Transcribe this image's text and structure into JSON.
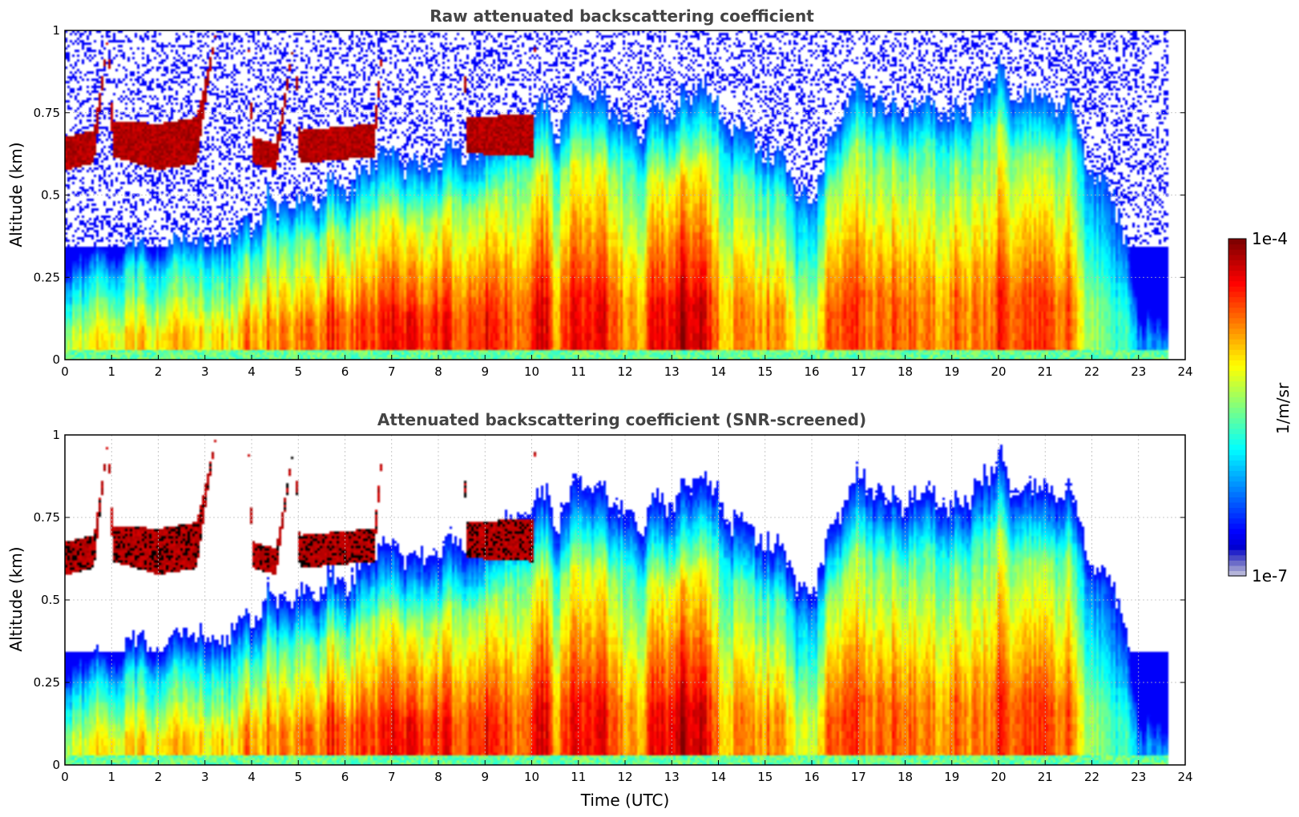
{
  "chart_data": [
    {
      "type": "heatmap",
      "title": "Raw attenuated backscattering coefficient",
      "xlabel": "",
      "ylabel": "Altitude (km)",
      "xlim": [
        0,
        24
      ],
      "ylim": [
        0,
        1
      ],
      "x_ticks": [
        "0",
        "1",
        "2",
        "3",
        "4",
        "5",
        "6",
        "7",
        "8",
        "9",
        "10",
        "11",
        "12",
        "13",
        "14",
        "15",
        "16",
        "17",
        "18",
        "19",
        "20",
        "21",
        "22",
        "23",
        "24"
      ],
      "y_ticks": [
        "0",
        "0.25",
        "0.5",
        "0.75",
        "1"
      ],
      "data_end_time": 23.6,
      "screened": false,
      "description_keyframes": [
        {
          "t": 0.0,
          "cloud_base": 0.58,
          "cloud_top": 0.68
        },
        {
          "t": 1.0,
          "cloud_base": 0.62,
          "cloud_top": 0.73
        },
        {
          "t": 2.5,
          "cloud_base": 0.6,
          "cloud_top": 0.72
        },
        {
          "t": 4.0,
          "cloud_base": 0.6,
          "cloud_top": 0.68
        },
        {
          "t": 5.5,
          "cloud_base": 0.6,
          "cloud_top": 0.7
        },
        {
          "t": 8.5,
          "cloud_base": 0.62,
          "cloud_top": 0.74
        }
      ]
    },
    {
      "type": "heatmap",
      "title": "Attenuated backscattering coefficient (SNR-screened)",
      "xlabel": "Time (UTC)",
      "ylabel": "Altitude (km)",
      "xlim": [
        0,
        24
      ],
      "ylim": [
        0,
        1
      ],
      "x_ticks": [
        "0",
        "1",
        "2",
        "3",
        "4",
        "5",
        "6",
        "7",
        "8",
        "9",
        "10",
        "11",
        "12",
        "13",
        "14",
        "15",
        "16",
        "17",
        "18",
        "19",
        "20",
        "21",
        "22",
        "23",
        "24"
      ],
      "y_ticks": [
        "0",
        "0.25",
        "0.5",
        "0.75",
        "1"
      ],
      "data_end_time": 23.6,
      "screened": true
    }
  ],
  "colorbar": {
    "label": "1/m/sr",
    "max_label": "1e-4",
    "min_label": "1e-7",
    "scale": "log",
    "range": [
      1e-07,
      0.0001
    ]
  },
  "colors": {
    "title": "#444444",
    "grid": "#bbbbbb",
    "saturated": "#000000"
  }
}
